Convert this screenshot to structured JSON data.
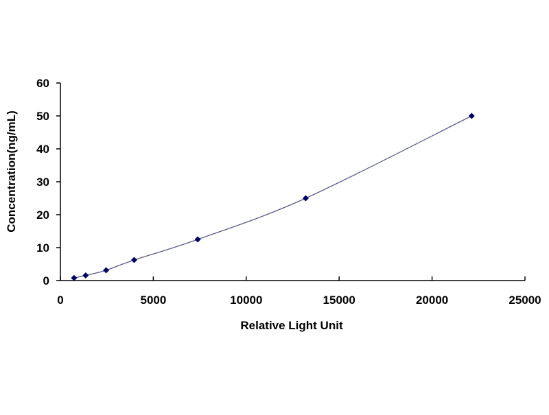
{
  "chart_data": {
    "type": "scatter",
    "title": "",
    "xlabel": "Relative Light Unit",
    "ylabel": "Concentration(ng/mL)",
    "xlim": [
      0,
      25000
    ],
    "ylim": [
      0,
      60
    ],
    "xticks": [
      0,
      5000,
      10000,
      15000,
      20000,
      25000
    ],
    "yticks": [
      0,
      10,
      20,
      30,
      40,
      50,
      60
    ],
    "grid": false,
    "trendline": "smooth curve",
    "colors": {
      "marker": "#000066",
      "line": "#5a5a8a"
    },
    "series": [
      {
        "x": [
          735,
          1360,
          2460,
          3970,
          7390,
          13200,
          22130
        ],
        "y": [
          0.78,
          1.56,
          3.125,
          6.25,
          12.5,
          25,
          50
        ]
      }
    ]
  }
}
